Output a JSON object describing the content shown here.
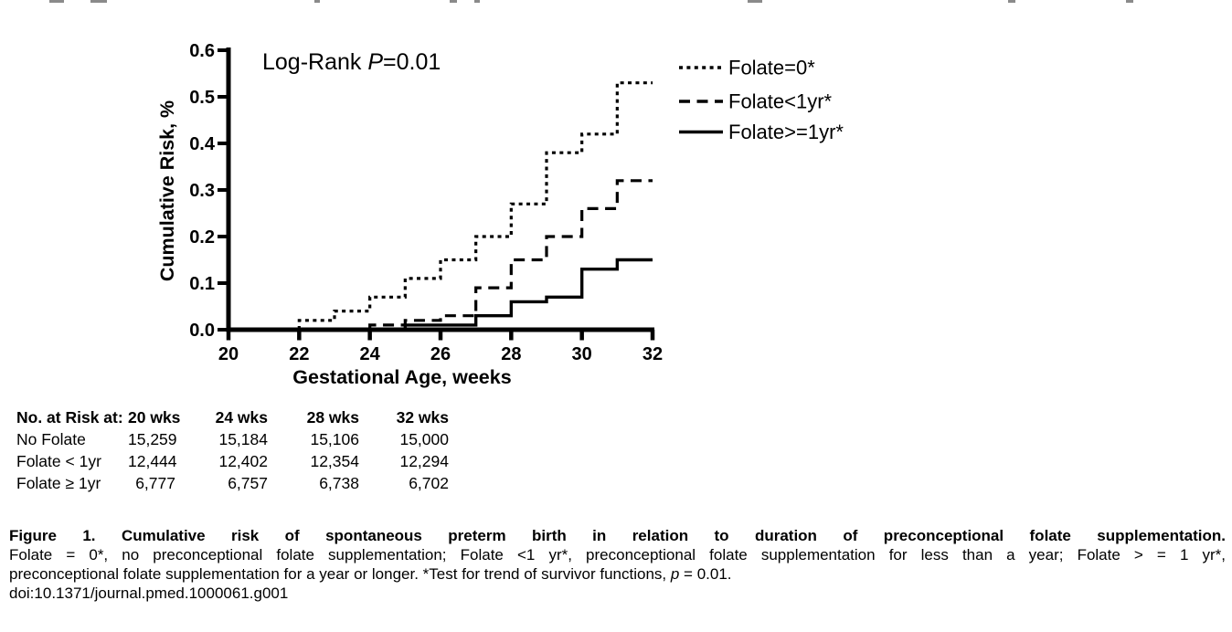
{
  "chart": {
    "annotation": {
      "prefix": "Log-Rank ",
      "italic": "P",
      "suffix": "=0.01"
    },
    "y_axis": {
      "label": "Cumulative Risk, %",
      "ticks": [
        "0.6",
        "0.5",
        "0.4",
        "0.3",
        "0.2",
        "0.1",
        "0.0"
      ]
    },
    "x_axis": {
      "label": "Gestational Age, weeks",
      "ticks": [
        "20",
        "22",
        "24",
        "26",
        "28",
        "30",
        "32"
      ]
    },
    "legend": [
      {
        "label": "Folate=0*",
        "style": "dotted"
      },
      {
        "label": "Folate<1yr*",
        "style": "dashed"
      },
      {
        "label": "Folate>=1yr*",
        "style": "solid"
      }
    ]
  },
  "chart_data": {
    "type": "line",
    "subtype": "step-survival",
    "title": "",
    "xlabel": "Gestational Age, weeks",
    "ylabel": "Cumulative Risk, %",
    "xlim": [
      20,
      32
    ],
    "ylim": [
      0,
      0.6
    ],
    "x_ticks": [
      20,
      22,
      24,
      26,
      28,
      30,
      32
    ],
    "y_ticks": [
      0.0,
      0.1,
      0.2,
      0.3,
      0.4,
      0.5,
      0.6
    ],
    "annotation": "Log-Rank P=0.01",
    "grid": false,
    "legend_position": "top-right outside plot",
    "series": [
      {
        "name": "Folate=0*",
        "line_style": "dotted",
        "steps": [
          [
            22,
            0.02
          ],
          [
            23,
            0.04
          ],
          [
            24,
            0.07
          ],
          [
            25,
            0.11
          ],
          [
            26,
            0.15
          ],
          [
            27,
            0.2
          ],
          [
            28,
            0.27
          ],
          [
            29,
            0.38
          ],
          [
            30,
            0.42
          ],
          [
            31,
            0.53
          ]
        ],
        "end_x": 32
      },
      {
        "name": "Folate<1yr*",
        "line_style": "dashed",
        "steps": [
          [
            24,
            0.01
          ],
          [
            25,
            0.02
          ],
          [
            26,
            0.03
          ],
          [
            27,
            0.09
          ],
          [
            28,
            0.15
          ],
          [
            29,
            0.2
          ],
          [
            30,
            0.26
          ],
          [
            31,
            0.32
          ]
        ],
        "end_x": 32
      },
      {
        "name": "Folate>=1yr*",
        "line_style": "solid",
        "steps": [
          [
            25,
            0.01
          ],
          [
            27,
            0.03
          ],
          [
            28,
            0.06
          ],
          [
            29,
            0.07
          ],
          [
            30,
            0.13
          ],
          [
            31,
            0.15
          ]
        ],
        "end_x": 32
      }
    ]
  },
  "risk_table": {
    "header": [
      "No. at Risk at:",
      "20 wks",
      "24 wks",
      "28 wks",
      "32 wks"
    ],
    "rows": [
      {
        "label": "No Folate",
        "values": [
          "15,259",
          "15,184",
          "15,106",
          "15,000"
        ]
      },
      {
        "label": "Folate < 1yr",
        "values": [
          "12,444",
          "12,402",
          "12,354",
          "12,294"
        ]
      },
      {
        "label": "Folate ≥ 1yr",
        "values": [
          "6,777",
          "6,757",
          "6,738",
          "6,702"
        ]
      }
    ]
  },
  "caption": {
    "bold": "Figure 1. Cumulative risk of spontaneous preterm birth in relation to duration of preconceptional folate supplementation.",
    "line2": "Folate = 0*, no preconceptional folate supplementation; Folate <1 yr*, preconceptional folate supplementation for less than a year; Folate > = 1 yr*,",
    "line3_pre": "preconceptional folate supplementation for a year or longer. *Test for trend of survivor functions, ",
    "line3_italic": "p",
    "line3_post": " = 0.01.",
    "doi": "doi:10.1371/journal.pmed.1000061.g001"
  }
}
